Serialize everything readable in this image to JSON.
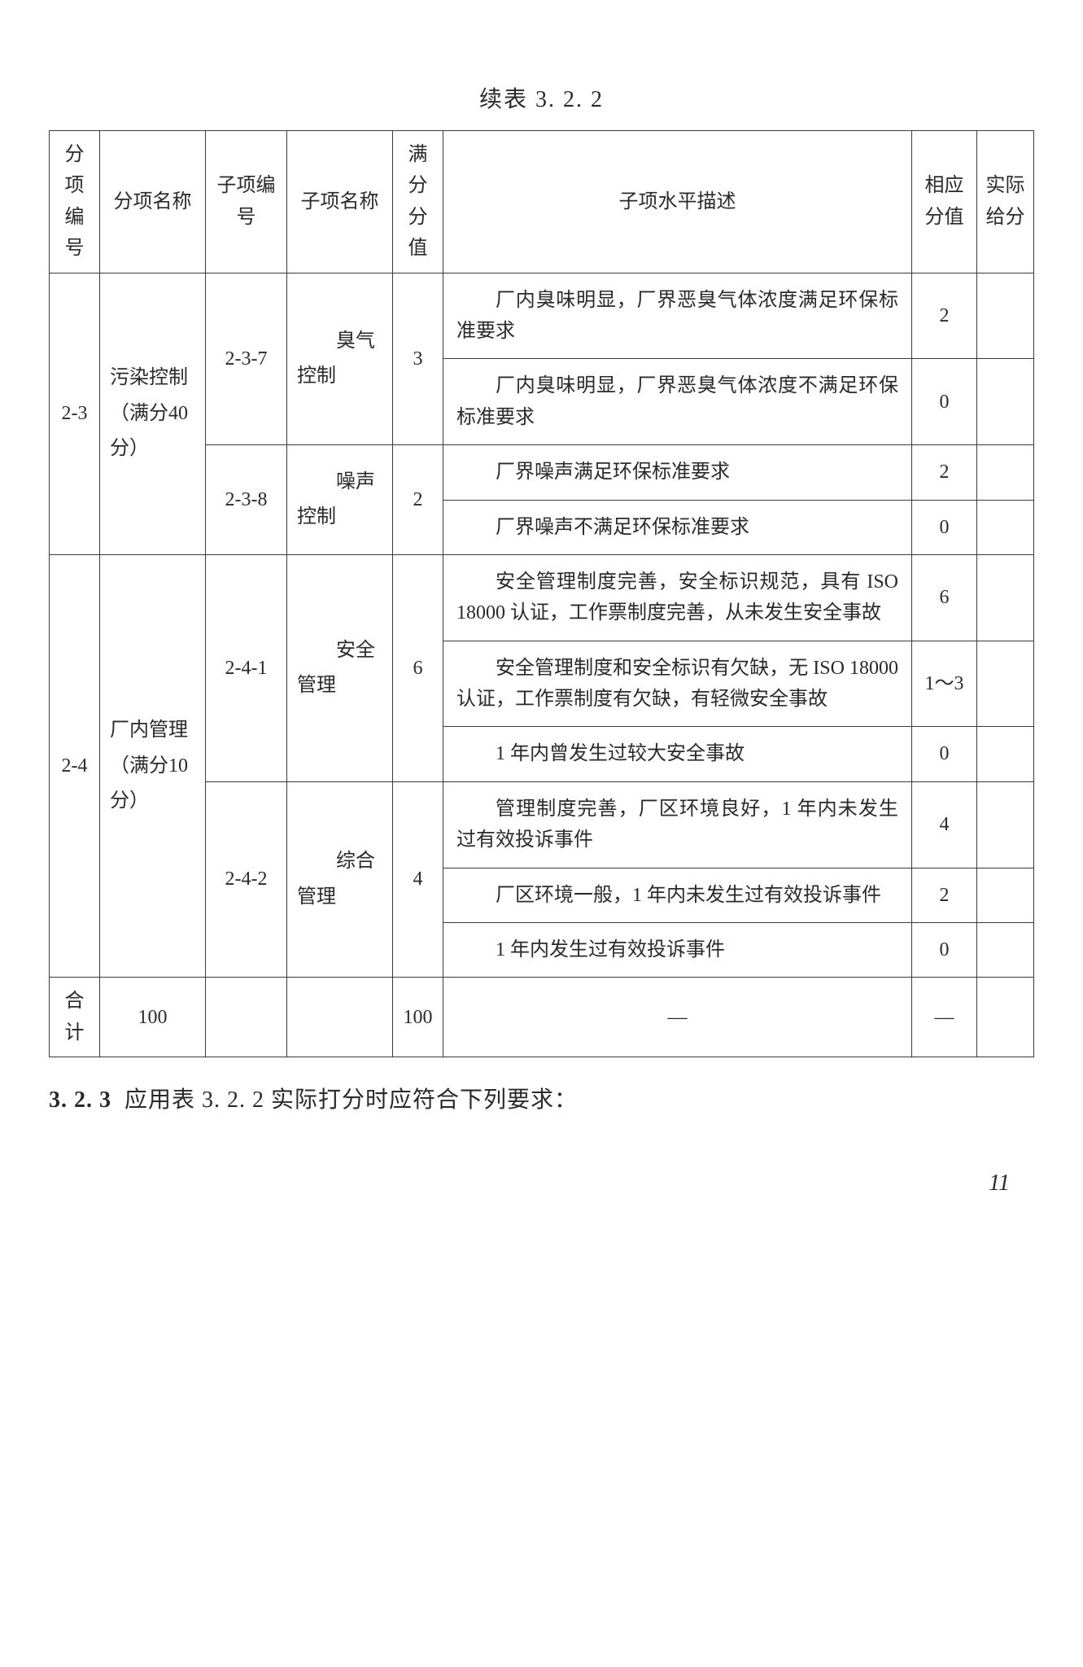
{
  "title": "续表 3. 2. 2",
  "headers": {
    "col1": "分项编号",
    "col2": "分项名称",
    "col3": "子项编号",
    "col4": "子项名称",
    "col5": "满分分值",
    "col6": "子项水平描述",
    "col7": "相应分值",
    "col8": "实际给分"
  },
  "section1": {
    "id": "2-3",
    "name": "污染控制（满分40 分）",
    "sub1": {
      "id": "2-3-7",
      "name": "臭气控制",
      "full": "3",
      "row1": {
        "desc": "厂内臭味明显，厂界恶臭气体浓度满足环保标准要求",
        "score": "2"
      },
      "row2": {
        "desc": "厂内臭味明显，厂界恶臭气体浓度不满足环保标准要求",
        "score": "0"
      }
    },
    "sub2": {
      "id": "2-3-8",
      "name": "噪声控制",
      "full": "2",
      "row1": {
        "desc": "厂界噪声满足环保标准要求",
        "score": "2"
      },
      "row2": {
        "desc": "厂界噪声不满足环保标准要求",
        "score": "0"
      }
    }
  },
  "section2": {
    "id": "2-4",
    "name": "厂内管理（满分10 分）",
    "sub1": {
      "id": "2-4-1",
      "name": "安全管理",
      "full": "6",
      "row1": {
        "desc": "安全管理制度完善，安全标识规范，具有 ISO 18000 认证，工作票制度完善，从未发生安全事故",
        "score": "6"
      },
      "row2": {
        "desc": "安全管理制度和安全标识有欠缺，无 ISO 18000 认证，工作票制度有欠缺，有轻微安全事故",
        "score": "1～3"
      },
      "row3": {
        "desc": "1 年内曾发生过较大安全事故",
        "score": "0"
      }
    },
    "sub2": {
      "id": "2-4-2",
      "name": "综合管理",
      "full": "4",
      "row1": {
        "desc": "管理制度完善，厂区环境良好，1 年内未发生过有效投诉事件",
        "score": "4"
      },
      "row2": {
        "desc": "厂区环境一般，1 年内未发生过有效投诉事件",
        "score": "2"
      },
      "row3": {
        "desc": "1 年内发生过有效投诉事件",
        "score": "0"
      }
    }
  },
  "totals": {
    "label": "合计",
    "name_total": "100",
    "full_total": "100",
    "desc_dash": "—",
    "score_dash": "—"
  },
  "footer": {
    "section_label": "3. 2. 3",
    "section_text": "应用表 3. 2. 2 实际打分时应符合下列要求：",
    "page": "11"
  }
}
